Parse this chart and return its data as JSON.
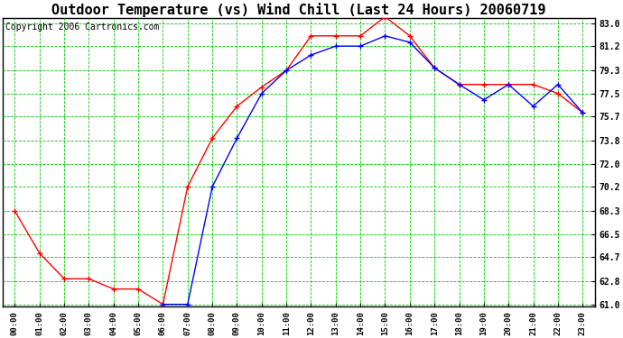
{
  "title": "Outdoor Temperature (vs) Wind Chill (Last 24 Hours) 20060719",
  "copyright": "Copyright 2006 Cartronics.com",
  "hours": [
    "00:00",
    "01:00",
    "02:00",
    "03:00",
    "04:00",
    "05:00",
    "06:00",
    "07:00",
    "08:00",
    "09:00",
    "10:00",
    "11:00",
    "12:00",
    "13:00",
    "14:00",
    "15:00",
    "16:00",
    "17:00",
    "18:00",
    "19:00",
    "20:00",
    "21:00",
    "22:00",
    "23:00"
  ],
  "temp": [
    68.3,
    65.0,
    63.0,
    63.0,
    62.2,
    62.2,
    61.0,
    70.2,
    74.0,
    76.5,
    78.0,
    79.3,
    82.0,
    82.0,
    82.0,
    83.5,
    82.0,
    79.5,
    78.2,
    78.2,
    78.2,
    78.2,
    77.5,
    76.0
  ],
  "windchill": [
    null,
    null,
    null,
    null,
    null,
    null,
    61.0,
    61.0,
    70.2,
    74.0,
    77.5,
    79.3,
    80.5,
    81.2,
    81.2,
    82.0,
    81.5,
    79.5,
    78.2,
    77.0,
    78.2,
    76.5,
    78.2,
    76.0
  ],
  "temp_color": "#ff0000",
  "windchill_color": "#0000ff",
  "bg_color": "#ffffff",
  "plot_bg_color": "#ffffff",
  "grid_color": "#00cc00",
  "title_fontsize": 11,
  "copyright_fontsize": 7,
  "ymin": 61.0,
  "ymax": 83.0,
  "yticks": [
    61.0,
    62.8,
    64.7,
    66.5,
    68.3,
    70.2,
    72.0,
    73.8,
    75.7,
    77.5,
    79.3,
    81.2,
    83.0
  ]
}
